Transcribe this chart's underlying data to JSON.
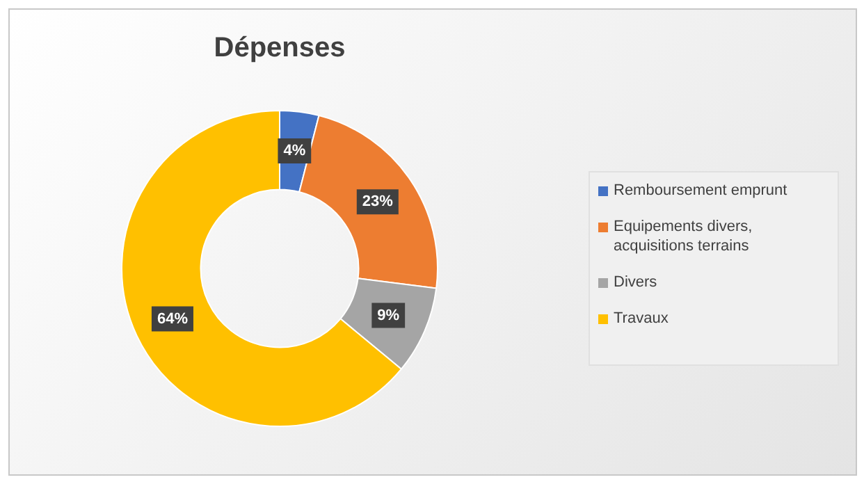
{
  "chart_data": {
    "type": "donut",
    "title": "Dépenses",
    "categories": [
      "Remboursement emprunt",
      "Equipements divers, acquisitions terrains",
      "Divers",
      "Travaux"
    ],
    "values": [
      4,
      23,
      9,
      64
    ],
    "colors": [
      "#4472c4",
      "#ed7d31",
      "#a5a5a5",
      "#ffc000"
    ],
    "value_labels": [
      "4%",
      "23%",
      "9%",
      "64%"
    ],
    "legend": "right"
  }
}
